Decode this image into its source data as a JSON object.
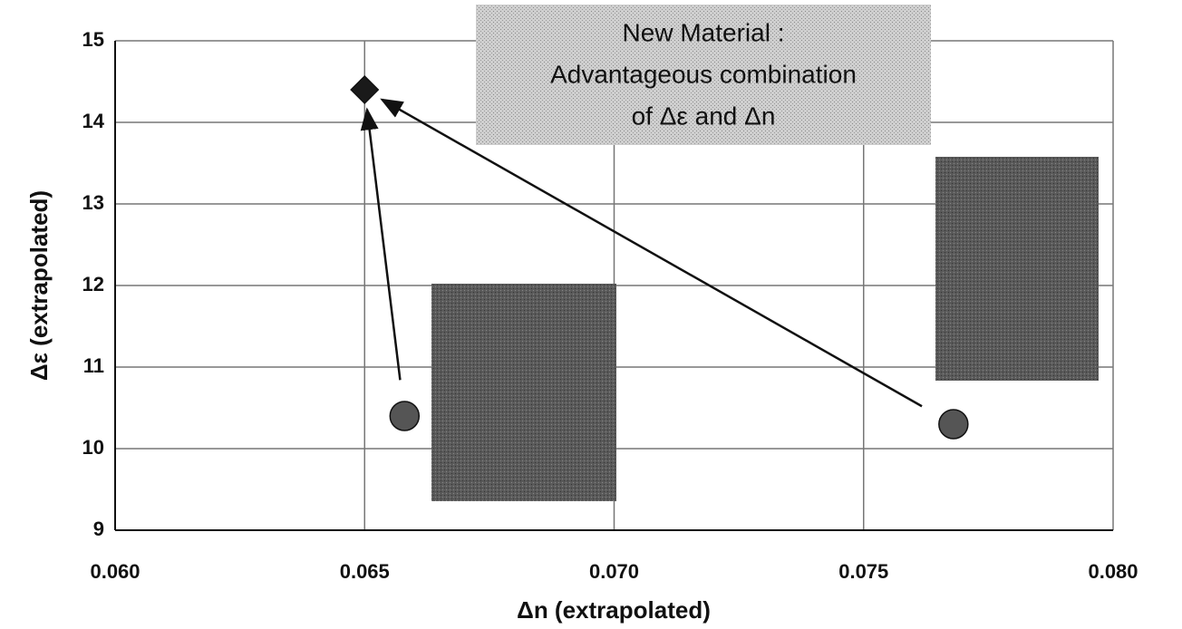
{
  "chart_data": {
    "type": "scatter",
    "xlabel": "Δn (extrapolated)",
    "ylabel": "Δε (extrapolated)",
    "annotation": [
      "New Material :",
      "Advantageous combination",
      "of Δε and Δn"
    ],
    "series": [
      {
        "marker": "diamond",
        "color": "#1a1a1a",
        "x": [
          0.065
        ],
        "values": [
          14.4
        ]
      },
      {
        "marker": "circle",
        "color": "#555555",
        "x": [
          0.0658,
          0.0768
        ],
        "values": [
          10.4,
          10.3
        ]
      }
    ],
    "xlim": [
      0.06,
      0.08
    ],
    "xticks": [
      {
        "value": 0.06,
        "label": "0.060"
      },
      0.065,
      {
        "value": 0.07,
        "label": "0.070"
      },
      0.075,
      {
        "value": 0.08,
        "label": "0.080"
      }
    ],
    "ylim": [
      9,
      15
    ],
    "yticks": [
      9,
      10,
      11,
      12,
      13,
      14,
      15
    ],
    "grid": true
  }
}
